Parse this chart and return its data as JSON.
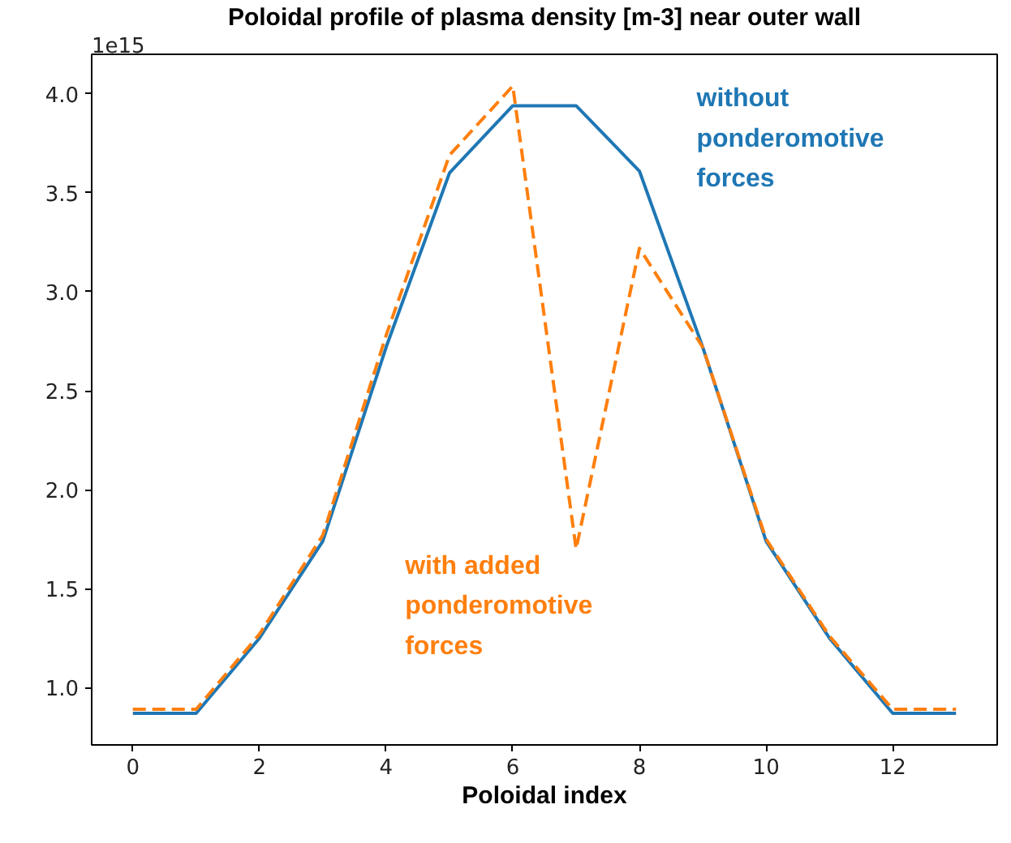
{
  "chart_data": {
    "type": "line",
    "title": "Poloidal profile of plasma density [m-3] near outer wall",
    "xlabel": "Poloidal index",
    "annotations": [
      "1e15"
    ],
    "x": [
      0,
      1,
      2,
      3,
      4,
      5,
      6,
      7,
      8,
      9,
      10,
      11,
      12,
      13
    ],
    "series": [
      {
        "name": "without ponderomotive forces",
        "color": "#1f77b4",
        "line_style": "solid",
        "values": [
          0.87,
          0.87,
          1.25,
          1.74,
          2.72,
          3.6,
          3.94,
          3.94,
          3.61,
          2.72,
          1.74,
          1.25,
          0.87,
          0.87
        ]
      },
      {
        "name": "with added ponderomotive forces",
        "color": "#ff7f0e",
        "line_style": "dashed",
        "values": [
          0.89,
          0.89,
          1.27,
          1.77,
          2.78,
          3.69,
          4.04,
          1.7,
          3.22,
          2.72,
          1.75,
          1.26,
          0.89,
          0.89
        ]
      }
    ],
    "xlim": [
      -0.65,
      13.65
    ],
    "ylim": [
      0.71,
      4.2
    ],
    "xticks": [
      0,
      2,
      4,
      6,
      8,
      10,
      12
    ],
    "yticks": [
      {
        "value": 1.0,
        "label": "1.0"
      },
      {
        "value": 1.5,
        "label": "1.5"
      },
      {
        "value": 2.0,
        "label": "2.0"
      },
      {
        "value": 2.5,
        "label": "2.5"
      },
      {
        "value": 3.0,
        "label": "3.0"
      },
      {
        "value": 3.5,
        "label": "3.5"
      },
      {
        "value": 4.0,
        "label": "4.0"
      }
    ],
    "grid": false
  }
}
